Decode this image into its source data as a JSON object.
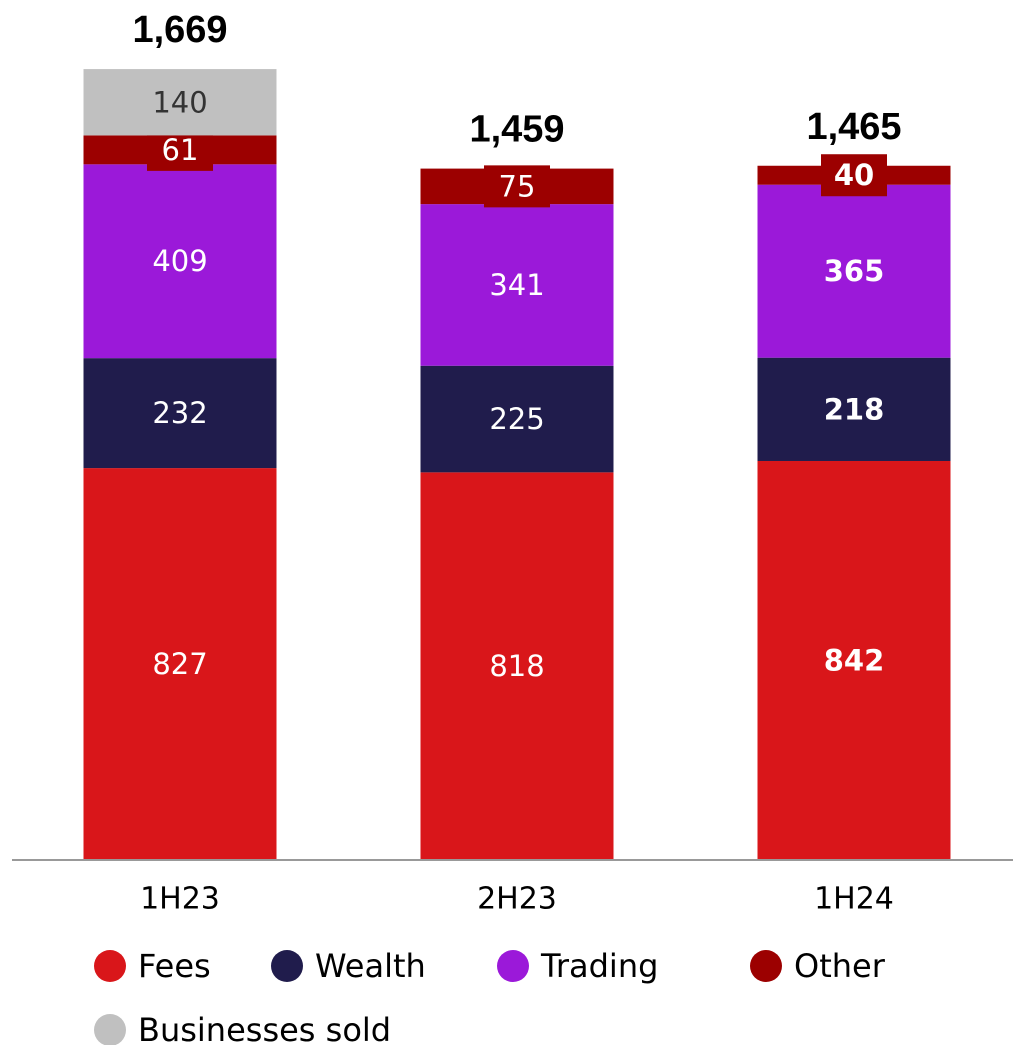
{
  "chart_data": {
    "type": "stacked_bar",
    "categories": [
      "1H23",
      "2H23",
      "1H24"
    ],
    "series": [
      {
        "name": "Fees",
        "color": "#d9161a",
        "values": [
          827,
          818,
          842
        ]
      },
      {
        "name": "Wealth",
        "color": "#201c4c",
        "values": [
          232,
          225,
          218
        ]
      },
      {
        "name": "Trading",
        "color": "#9b19d9",
        "values": [
          409,
          341,
          365
        ]
      },
      {
        "name": "Other",
        "color": "#9c0000",
        "values": [
          61,
          75,
          40
        ]
      },
      {
        "name": "Businesses sold",
        "color": "#c0c0c0",
        "values": [
          140,
          null,
          null
        ]
      }
    ],
    "totals": {
      "values": [
        1669,
        1459,
        1465
      ],
      "value_labels": [
        "1,669",
        "1,459",
        "1,465"
      ]
    },
    "ylim": [
      0,
      1800
    ],
    "legend": "bottom"
  }
}
